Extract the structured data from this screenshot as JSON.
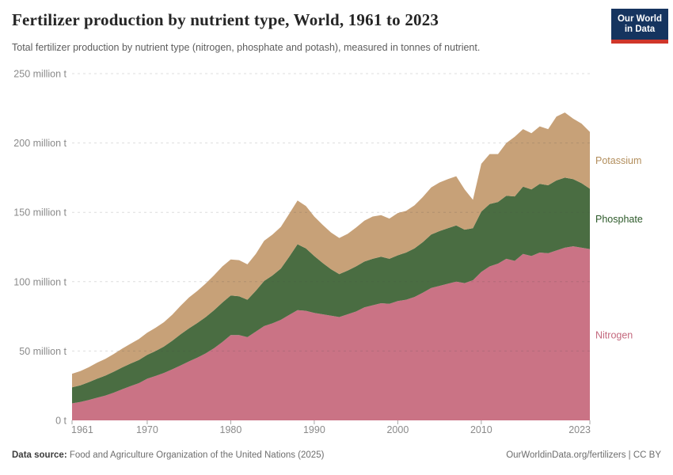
{
  "header": {
    "title": "Fertilizer production by nutrient type, World, 1961 to 2023",
    "subtitle": "Total fertilizer production by nutrient type (nitrogen, phosphate and potash), measured in tonnes of nutrient.",
    "logo_line1": "Our World",
    "logo_line2": "in Data",
    "logo_bg_color": "#15345f",
    "logo_bar_color": "#d0362a"
  },
  "footer": {
    "source_label": "Data source:",
    "source_text": " Food and Agriculture Organization of the United Nations (2025)",
    "link_text": "OurWorldinData.org/fertilizers | CC BY"
  },
  "chart_data": {
    "type": "area",
    "stacked": true,
    "title": "Fertilizer production by nutrient type, World, 1961 to 2023",
    "xlabel": "",
    "ylabel": "tonnes of nutrient",
    "ylim": [
      0,
      250
    ],
    "grid": "dashed horizontal",
    "legend_position": "right",
    "x": [
      1961,
      1962,
      1963,
      1964,
      1965,
      1966,
      1967,
      1968,
      1969,
      1970,
      1971,
      1972,
      1973,
      1974,
      1975,
      1976,
      1977,
      1978,
      1979,
      1980,
      1981,
      1982,
      1983,
      1984,
      1985,
      1986,
      1987,
      1988,
      1989,
      1990,
      1991,
      1992,
      1993,
      1994,
      1995,
      1996,
      1997,
      1998,
      1999,
      2000,
      2001,
      2002,
      2003,
      2004,
      2005,
      2006,
      2007,
      2008,
      2009,
      2010,
      2011,
      2012,
      2013,
      2014,
      2015,
      2016,
      2017,
      2018,
      2019,
      2020,
      2021,
      2022,
      2023
    ],
    "series": [
      {
        "name": "Nitrogen",
        "color": "#ca7385",
        "label_color": "#c4697e",
        "values": [
          12.3,
          13.3,
          14.7,
          16.3,
          17.9,
          20.0,
          22.4,
          24.7,
          26.8,
          30.0,
          32.0,
          34.2,
          36.8,
          39.6,
          42.5,
          45.2,
          48.3,
          52.0,
          56.5,
          61.5,
          61.5,
          60.0,
          64.0,
          68.0,
          70.0,
          72.5,
          76.0,
          79.5,
          79.0,
          77.5,
          76.5,
          75.5,
          74.5,
          76.5,
          78.5,
          81.5,
          83.0,
          84.5,
          84.0,
          86.0,
          87.0,
          89.0,
          92.0,
          95.5,
          97.0,
          98.5,
          100.0,
          99.0,
          101.0,
          107.0,
          111.0,
          113.0,
          116.5,
          115.0,
          120.0,
          118.5,
          121.0,
          120.5,
          122.5,
          124.5,
          125.5,
          124.5,
          123.5
        ]
      },
      {
        "name": "Phosphate",
        "color": "#4a6d42",
        "label_color": "#2d5a2a",
        "values": [
          11.5,
          12.0,
          12.8,
          13.7,
          14.4,
          15.1,
          15.8,
          16.3,
          16.7,
          17.2,
          18.0,
          19.0,
          20.6,
          22.5,
          23.8,
          25.0,
          26.2,
          27.4,
          28.5,
          28.5,
          28.0,
          27.0,
          29.5,
          32.5,
          34.5,
          37.0,
          42.0,
          47.5,
          45.0,
          41.0,
          37.0,
          33.5,
          31.0,
          31.5,
          32.5,
          33.0,
          33.5,
          33.5,
          32.5,
          33.0,
          34.0,
          35.0,
          36.5,
          38.5,
          39.5,
          40.0,
          40.5,
          38.5,
          37.5,
          43.5,
          45.0,
          44.5,
          45.5,
          46.5,
          48.5,
          48.0,
          49.5,
          49.0,
          50.5,
          50.5,
          48.5,
          46.5,
          43.5
        ]
      },
      {
        "name": "Potassium",
        "color": "#c7a178",
        "label_color": "#b28e5c",
        "values": [
          9.8,
          10.2,
          10.8,
          11.6,
          12.1,
          12.8,
          13.5,
          14.2,
          15.2,
          16.0,
          16.8,
          17.6,
          18.8,
          20.5,
          22.3,
          23.1,
          24.2,
          25.2,
          26.0,
          26.0,
          26.0,
          25.5,
          26.5,
          29.0,
          29.5,
          30.0,
          31.0,
          31.5,
          30.5,
          28.5,
          27.5,
          26.5,
          26.0,
          26.5,
          28.0,
          29.5,
          30.5,
          30.0,
          29.0,
          30.5,
          30.0,
          31.0,
          32.5,
          34.0,
          35.0,
          35.5,
          35.5,
          29.0,
          20.5,
          34.5,
          36.0,
          34.5,
          38.0,
          43.0,
          41.5,
          40.5,
          41.5,
          40.5,
          46.0,
          47.0,
          43.5,
          43.0,
          41.0
        ]
      }
    ],
    "yticks": [
      {
        "value": 0,
        "label": "0 t"
      },
      {
        "value": 50,
        "label": "50 million t"
      },
      {
        "value": 100,
        "label": "100 million t"
      },
      {
        "value": 150,
        "label": "150 million t"
      },
      {
        "value": 200,
        "label": "200 million t"
      },
      {
        "value": 250,
        "label": "250 million t"
      }
    ],
    "xticks": [
      1961,
      1970,
      1980,
      1990,
      2000,
      2010,
      2023
    ],
    "axis_text_color": "#8a8a8a",
    "tick_color": "#a5a5a5",
    "gridline_color": "#464646",
    "gridline_opacity": 0.18
  }
}
